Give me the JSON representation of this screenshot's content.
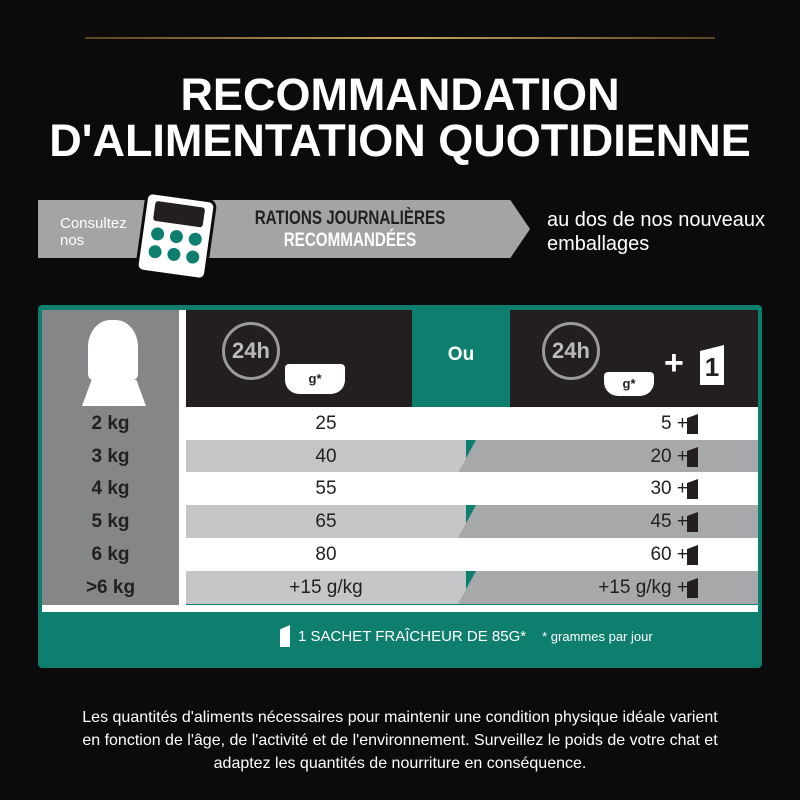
{
  "title": {
    "line1": "RECOMMANDATION",
    "line2": "D'ALIMENTATION QUOTIDIENNE"
  },
  "banner": {
    "consult": "Consultez nos",
    "rations_line1": "RATIONS JOURNALIÈRES",
    "rations_line2": "RECOMMANDÉES",
    "back": "au dos de nos nouveaux emballages"
  },
  "table": {
    "header": {
      "clock_label": "24h",
      "bowl_label": "g*",
      "or": "Ou",
      "plus": "+",
      "pouch_count": "1"
    },
    "rows": [
      {
        "weight": "2 kg",
        "dry": "25",
        "mixed": "5 +"
      },
      {
        "weight": "3 kg",
        "dry": "40",
        "mixed": "20 +"
      },
      {
        "weight": "4 kg",
        "dry": "55",
        "mixed": "30 +"
      },
      {
        "weight": "5 kg",
        "dry": "65",
        "mixed": "45 +"
      },
      {
        "weight": "6 kg",
        "dry": "80",
        "mixed": "60 +"
      },
      {
        "weight": ">6 kg",
        "dry": "+15 g/kg",
        "mixed": "+15 g/kg +"
      }
    ],
    "footer": {
      "pouch_note": "1 SACHET FRAÎCHEUR DE 85G*",
      "asterisk_note": "* grammes par jour"
    }
  },
  "paragraph": "Les quantités d'aliments nécessaires pour maintenir une condition physique idéale varient en fonction de l'âge, de l'activité et de l'environnement. Surveillez le poids de votre chat et adaptez les quantités de nourriture en conséquence.",
  "colors": {
    "teal": "#0e7f6e",
    "dark": "#231f20",
    "gold": "#c9a560"
  }
}
